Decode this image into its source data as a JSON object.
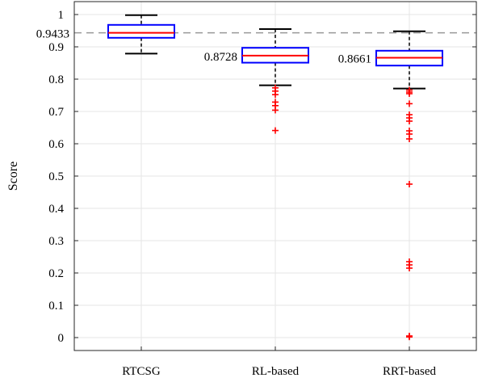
{
  "chart_data": {
    "type": "box",
    "categories": [
      "RTCSG",
      "RL-based",
      "RRT-based"
    ],
    "ylabel": "Score",
    "xlabel": "",
    "ylim": [
      -0.04,
      1.04
    ],
    "yticks": [
      0,
      0.1,
      0.2,
      0.3,
      0.4,
      0.5,
      0.6,
      0.7,
      0.8,
      0.9,
      1
    ],
    "ytick_labels": [
      "0",
      "0.1",
      "0.2",
      "0.3",
      "0.4",
      "0.5",
      "0.6",
      "0.7",
      "0.8",
      "0.9",
      "1"
    ],
    "grid": true,
    "reference_line": {
      "value": 0.9433,
      "label": "0.9433",
      "style": "dashed"
    },
    "boxes": [
      {
        "name": "RTCSG",
        "whisker_low": 0.879,
        "q1": 0.928,
        "median": 0.9433,
        "q3": 0.968,
        "whisker_high": 0.998,
        "median_label": "",
        "outliers": []
      },
      {
        "name": "RL-based",
        "whisker_low": 0.781,
        "q1": 0.851,
        "median": 0.8728,
        "q3": 0.897,
        "whisker_high": 0.955,
        "median_label": "0.8728",
        "outliers": [
          0.773,
          0.763,
          0.752,
          0.729,
          0.718,
          0.704,
          0.641
        ]
      },
      {
        "name": "RRT-based",
        "whisker_low": 0.771,
        "q1": 0.842,
        "median": 0.8661,
        "q3": 0.888,
        "whisker_high": 0.948,
        "median_label": "0.8661",
        "outliers": [
          0.766,
          0.76,
          0.755,
          0.724,
          0.69,
          0.68,
          0.67,
          0.64,
          0.63,
          0.615,
          0.475,
          0.235,
          0.225,
          0.215,
          0.005,
          0.002
        ]
      }
    ],
    "colors": {
      "box": "#0000ff",
      "median": "#ff0000",
      "whisker": "#000000",
      "outlier": "#ff0000",
      "reference": "#999999",
      "grid": "#e6e6e6"
    }
  }
}
